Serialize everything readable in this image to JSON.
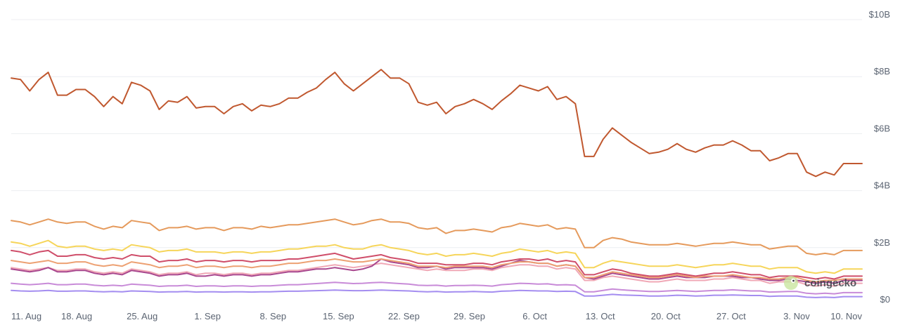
{
  "chart_data": {
    "type": "line",
    "y_unit": "USD",
    "ylim": [
      0,
      10000000000
    ],
    "y_ticks": [
      {
        "value": 0,
        "label": "$0"
      },
      {
        "value": 2000000000,
        "label": "$2B"
      },
      {
        "value": 4000000000,
        "label": "$4B"
      },
      {
        "value": 6000000000,
        "label": "$6B"
      },
      {
        "value": 8000000000,
        "label": "$8B"
      },
      {
        "value": 10000000000,
        "label": "$10B"
      }
    ],
    "x_ticks": [
      "11. Aug",
      "18. Aug",
      "25. Aug",
      "1. Sep",
      "8. Sep",
      "15. Sep",
      "22. Sep",
      "29. Sep",
      "6. Oct",
      "13. Oct",
      "20. Oct",
      "27. Oct",
      "3. Nov",
      "10. Nov"
    ],
    "x_start": "2024-08-11",
    "x_end": "2024-11-10",
    "grid": true,
    "legend": "none",
    "series": [
      {
        "color": "#c0582f",
        "values_billion": [
          7.95,
          7.9,
          7.5,
          7.9,
          8.15,
          7.35,
          7.35,
          7.55,
          7.55,
          7.3,
          6.95,
          7.3,
          7.05,
          7.8,
          7.7,
          7.5,
          6.85,
          7.15,
          7.1,
          7.3,
          6.9,
          6.95,
          6.95,
          6.7,
          6.95,
          7.05,
          6.8,
          7.0,
          6.95,
          7.05,
          7.25,
          7.25,
          7.45,
          7.6,
          7.9,
          8.15,
          7.75,
          7.5,
          7.75,
          8.0,
          8.25,
          7.95,
          7.95,
          7.75,
          7.1,
          7.0,
          7.1,
          6.7,
          6.95,
          7.05,
          7.2,
          7.05,
          6.85,
          7.15,
          7.4,
          7.7,
          7.6,
          7.5,
          7.65,
          7.2,
          7.3,
          7.05,
          5.2,
          5.2,
          5.8,
          6.2,
          5.95,
          5.7,
          5.5,
          5.3,
          5.35,
          5.45,
          5.65,
          5.45,
          5.35,
          5.5,
          5.6,
          5.6,
          5.75,
          5.6,
          5.4,
          5.4,
          5.05,
          5.15,
          5.3,
          5.3,
          4.65,
          4.5,
          4.65,
          4.55,
          4.95,
          4.95,
          4.95
        ]
      },
      {
        "color": "#e59a5c",
        "values_billion": [
          2.95,
          2.9,
          2.8,
          2.9,
          3.0,
          2.9,
          2.85,
          2.9,
          2.9,
          2.75,
          2.65,
          2.75,
          2.7,
          2.95,
          2.9,
          2.85,
          2.6,
          2.7,
          2.7,
          2.75,
          2.65,
          2.7,
          2.7,
          2.6,
          2.7,
          2.7,
          2.65,
          2.75,
          2.7,
          2.75,
          2.8,
          2.8,
          2.85,
          2.9,
          2.95,
          3.0,
          2.9,
          2.8,
          2.85,
          2.95,
          3.0,
          2.9,
          2.9,
          2.85,
          2.7,
          2.65,
          2.7,
          2.5,
          2.6,
          2.6,
          2.65,
          2.6,
          2.55,
          2.7,
          2.75,
          2.85,
          2.8,
          2.75,
          2.8,
          2.65,
          2.7,
          2.65,
          2.0,
          2.0,
          2.25,
          2.35,
          2.3,
          2.2,
          2.15,
          2.1,
          2.1,
          2.1,
          2.15,
          2.1,
          2.05,
          2.1,
          2.15,
          2.15,
          2.2,
          2.15,
          2.1,
          2.1,
          1.95,
          2.0,
          2.05,
          2.05,
          1.8,
          1.75,
          1.8,
          1.75,
          1.9,
          1.9,
          1.9
        ]
      },
      {
        "color": "#f6d55a",
        "values_billion": [
          2.2,
          2.15,
          2.05,
          2.15,
          2.25,
          2.05,
          2.0,
          2.05,
          2.05,
          1.95,
          1.9,
          1.95,
          1.9,
          2.1,
          2.05,
          2.0,
          1.85,
          1.9,
          1.9,
          1.95,
          1.85,
          1.85,
          1.85,
          1.8,
          1.85,
          1.85,
          1.8,
          1.85,
          1.85,
          1.9,
          1.95,
          1.95,
          2.0,
          2.05,
          2.05,
          2.1,
          2.0,
          1.95,
          1.95,
          2.05,
          2.1,
          2.0,
          1.95,
          1.9,
          1.8,
          1.75,
          1.8,
          1.7,
          1.75,
          1.75,
          1.8,
          1.75,
          1.7,
          1.8,
          1.85,
          1.95,
          1.9,
          1.85,
          1.9,
          1.8,
          1.85,
          1.8,
          1.3,
          1.3,
          1.45,
          1.55,
          1.5,
          1.45,
          1.4,
          1.35,
          1.35,
          1.35,
          1.4,
          1.35,
          1.3,
          1.35,
          1.4,
          1.4,
          1.45,
          1.4,
          1.35,
          1.35,
          1.25,
          1.3,
          1.3,
          1.3,
          1.15,
          1.1,
          1.15,
          1.1,
          1.25,
          1.25,
          1.25
        ]
      },
      {
        "color": "#cf4e6a",
        "values_billion": [
          1.9,
          1.85,
          1.75,
          1.85,
          1.9,
          1.7,
          1.7,
          1.75,
          1.75,
          1.65,
          1.6,
          1.65,
          1.6,
          1.75,
          1.7,
          1.7,
          1.5,
          1.55,
          1.55,
          1.6,
          1.5,
          1.55,
          1.55,
          1.5,
          1.55,
          1.55,
          1.5,
          1.55,
          1.55,
          1.55,
          1.6,
          1.6,
          1.65,
          1.7,
          1.75,
          1.8,
          1.7,
          1.6,
          1.65,
          1.7,
          1.75,
          1.65,
          1.6,
          1.55,
          1.45,
          1.45,
          1.45,
          1.4,
          1.4,
          1.4,
          1.45,
          1.45,
          1.4,
          1.5,
          1.55,
          1.6,
          1.6,
          1.55,
          1.6,
          1.5,
          1.55,
          1.5,
          1.05,
          1.05,
          1.15,
          1.25,
          1.2,
          1.1,
          1.05,
          1.0,
          1.0,
          1.05,
          1.1,
          1.05,
          1.0,
          1.05,
          1.1,
          1.1,
          1.15,
          1.1,
          1.05,
          1.05,
          0.95,
          1.0,
          1.0,
          1.0,
          0.95,
          0.9,
          0.95,
          0.9,
          1.0,
          1.0,
          1.0
        ]
      },
      {
        "color": "#eda173",
        "values_billion": [
          1.55,
          1.5,
          1.45,
          1.5,
          1.55,
          1.45,
          1.45,
          1.5,
          1.5,
          1.4,
          1.35,
          1.4,
          1.35,
          1.5,
          1.45,
          1.4,
          1.3,
          1.35,
          1.35,
          1.4,
          1.3,
          1.35,
          1.35,
          1.3,
          1.35,
          1.35,
          1.3,
          1.35,
          1.35,
          1.4,
          1.45,
          1.45,
          1.5,
          1.55,
          1.55,
          1.6,
          1.55,
          1.5,
          1.5,
          1.55,
          1.6,
          1.55,
          1.5,
          1.45,
          1.35,
          1.35,
          1.35,
          1.3,
          1.35,
          1.35,
          1.35,
          1.35,
          1.3,
          1.4,
          1.45,
          1.5,
          1.5,
          1.45,
          1.45,
          1.35,
          1.4,
          1.35,
          0.95,
          0.95,
          1.05,
          1.15,
          1.1,
          1.05,
          1.0,
          0.95,
          0.95,
          1.0,
          1.05,
          1.0,
          0.95,
          1.0,
          1.0,
          1.0,
          1.05,
          1.0,
          0.95,
          0.95,
          0.9,
          0.9,
          0.95,
          0.95,
          0.85,
          0.8,
          0.85,
          0.85,
          0.9,
          0.9,
          0.9
        ]
      },
      {
        "color": "#a8478e",
        "values_billion": [
          1.25,
          1.2,
          1.15,
          1.2,
          1.3,
          1.15,
          1.15,
          1.2,
          1.2,
          1.1,
          1.05,
          1.1,
          1.05,
          1.2,
          1.15,
          1.1,
          1.0,
          1.05,
          1.05,
          1.1,
          1.0,
          1.0,
          1.05,
          1.0,
          1.05,
          1.05,
          1.0,
          1.05,
          1.05,
          1.1,
          1.15,
          1.15,
          1.2,
          1.25,
          1.25,
          1.3,
          1.25,
          1.2,
          1.25,
          1.35,
          1.6,
          1.5,
          1.45,
          1.4,
          1.3,
          1.3,
          1.35,
          1.25,
          1.3,
          1.3,
          1.3,
          1.3,
          1.25,
          1.35,
          1.45,
          1.55,
          1.5,
          1.45,
          1.45,
          1.35,
          1.4,
          1.35,
          0.95,
          0.9,
          1.0,
          1.1,
          1.05,
          1.0,
          0.95,
          0.9,
          0.9,
          0.95,
          1.0,
          0.95,
          0.95,
          0.95,
          1.0,
          1.0,
          1.0,
          0.95,
          0.95,
          0.9,
          0.85,
          0.85,
          0.9,
          0.85,
          0.8,
          0.75,
          0.8,
          0.75,
          0.85,
          0.85,
          0.85
        ]
      },
      {
        "color": "#f0a8b6",
        "values_billion": [
          1.3,
          1.25,
          1.2,
          1.25,
          1.3,
          1.2,
          1.2,
          1.25,
          1.25,
          1.15,
          1.1,
          1.15,
          1.1,
          1.25,
          1.2,
          1.15,
          1.05,
          1.1,
          1.1,
          1.15,
          1.05,
          1.1,
          1.1,
          1.05,
          1.1,
          1.1,
          1.05,
          1.1,
          1.1,
          1.15,
          1.2,
          1.2,
          1.25,
          1.3,
          1.35,
          1.4,
          1.35,
          1.3,
          1.35,
          1.4,
          1.45,
          1.4,
          1.35,
          1.3,
          1.25,
          1.2,
          1.25,
          1.2,
          1.2,
          1.2,
          1.25,
          1.25,
          1.2,
          1.3,
          1.35,
          1.4,
          1.4,
          1.35,
          1.35,
          1.25,
          1.3,
          1.25,
          0.85,
          0.85,
          0.95,
          1.0,
          0.95,
          0.9,
          0.85,
          0.8,
          0.8,
          0.85,
          0.9,
          0.85,
          0.85,
          0.85,
          0.9,
          0.9,
          0.95,
          0.9,
          0.85,
          0.85,
          0.75,
          0.8,
          0.8,
          0.8,
          0.7,
          0.65,
          0.7,
          0.65,
          0.75,
          0.75,
          0.75
        ]
      },
      {
        "color": "#c88bd8",
        "values_billion": [
          0.75,
          0.72,
          0.7,
          0.72,
          0.75,
          0.7,
          0.7,
          0.72,
          0.72,
          0.68,
          0.66,
          0.68,
          0.66,
          0.72,
          0.7,
          0.68,
          0.64,
          0.66,
          0.66,
          0.68,
          0.64,
          0.66,
          0.66,
          0.64,
          0.66,
          0.66,
          0.64,
          0.66,
          0.66,
          0.68,
          0.7,
          0.7,
          0.72,
          0.74,
          0.76,
          0.78,
          0.76,
          0.74,
          0.75,
          0.77,
          0.78,
          0.76,
          0.74,
          0.72,
          0.68,
          0.67,
          0.68,
          0.65,
          0.67,
          0.67,
          0.68,
          0.67,
          0.65,
          0.7,
          0.72,
          0.75,
          0.74,
          0.72,
          0.73,
          0.69,
          0.7,
          0.68,
          0.45,
          0.45,
          0.5,
          0.55,
          0.52,
          0.5,
          0.48,
          0.46,
          0.46,
          0.48,
          0.5,
          0.48,
          0.46,
          0.48,
          0.5,
          0.5,
          0.52,
          0.5,
          0.48,
          0.48,
          0.44,
          0.45,
          0.46,
          0.46,
          0.4,
          0.38,
          0.4,
          0.38,
          0.42,
          0.42,
          0.42
        ]
      },
      {
        "color": "#a48df0",
        "values_billion": [
          0.5,
          0.48,
          0.47,
          0.48,
          0.5,
          0.47,
          0.47,
          0.48,
          0.48,
          0.46,
          0.45,
          0.46,
          0.45,
          0.48,
          0.47,
          0.46,
          0.44,
          0.45,
          0.45,
          0.46,
          0.44,
          0.45,
          0.45,
          0.44,
          0.45,
          0.45,
          0.44,
          0.45,
          0.45,
          0.46,
          0.47,
          0.47,
          0.48,
          0.49,
          0.5,
          0.51,
          0.5,
          0.49,
          0.49,
          0.5,
          0.51,
          0.5,
          0.49,
          0.48,
          0.46,
          0.45,
          0.46,
          0.44,
          0.45,
          0.45,
          0.46,
          0.45,
          0.44,
          0.47,
          0.48,
          0.5,
          0.49,
          0.48,
          0.48,
          0.46,
          0.47,
          0.46,
          0.3,
          0.3,
          0.33,
          0.36,
          0.34,
          0.33,
          0.32,
          0.3,
          0.3,
          0.31,
          0.33,
          0.32,
          0.3,
          0.31,
          0.33,
          0.33,
          0.34,
          0.33,
          0.32,
          0.32,
          0.29,
          0.3,
          0.3,
          0.3,
          0.26,
          0.25,
          0.26,
          0.25,
          0.28,
          0.28,
          0.28
        ]
      }
    ]
  },
  "watermark": {
    "text": "coingecko",
    "icon": "gecko-logo-icon"
  }
}
